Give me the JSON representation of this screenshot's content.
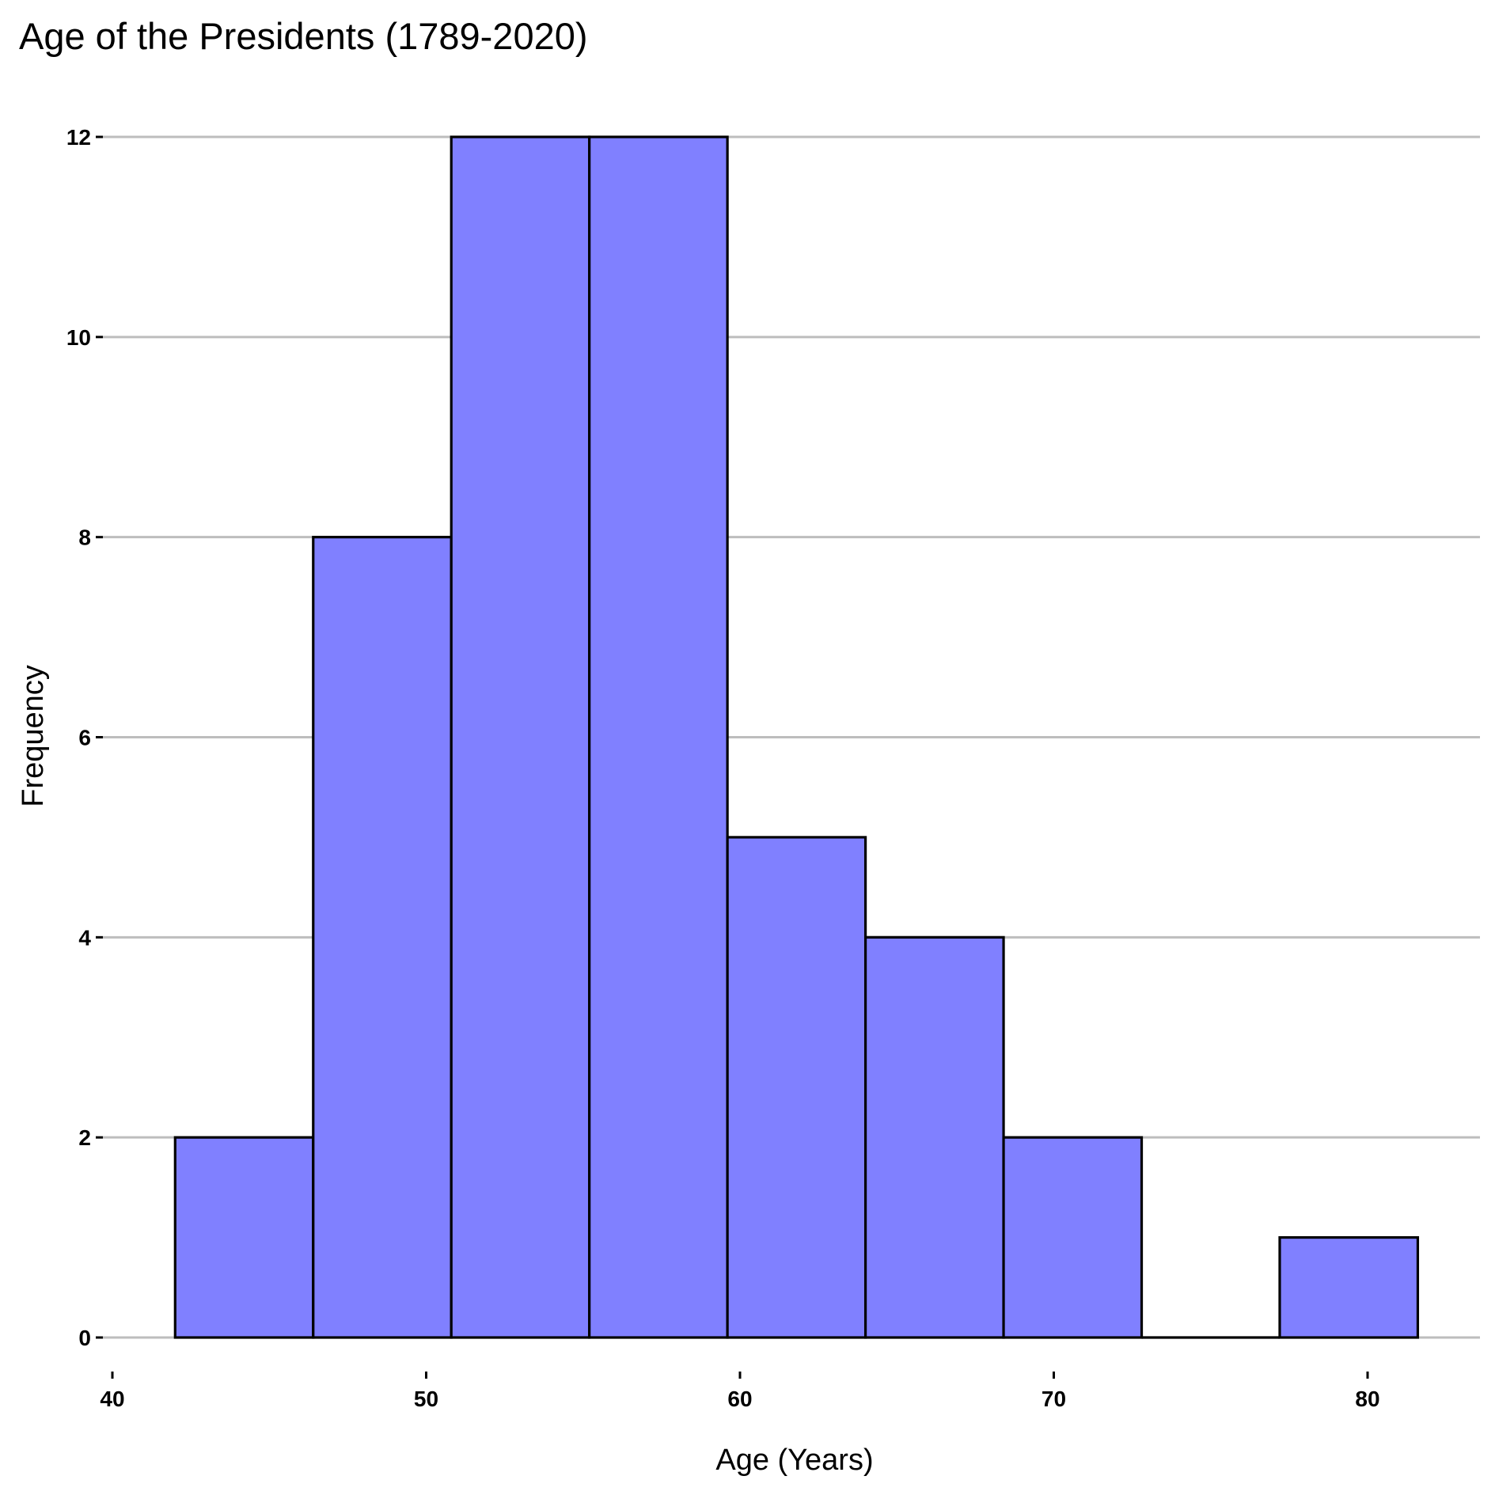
{
  "chart_data": {
    "type": "bar",
    "subtype": "histogram",
    "title": "Age of the Presidents (1789-2020)",
    "xlabel": "Age (Years)",
    "ylabel": "Frequency",
    "bins": [
      {
        "start": 42.0,
        "end": 46.4,
        "count": 2
      },
      {
        "start": 46.4,
        "end": 50.8,
        "count": 8
      },
      {
        "start": 50.8,
        "end": 55.2,
        "count": 12
      },
      {
        "start": 55.2,
        "end": 59.6,
        "count": 12
      },
      {
        "start": 59.6,
        "end": 64.0,
        "count": 5
      },
      {
        "start": 64.0,
        "end": 68.4,
        "count": 4
      },
      {
        "start": 68.4,
        "end": 72.8,
        "count": 2
      },
      {
        "start": 72.8,
        "end": 77.2,
        "count": 0
      },
      {
        "start": 77.2,
        "end": 81.6,
        "count": 1
      }
    ],
    "xlim": [
      40,
      83.5
    ],
    "ylim": [
      0,
      12
    ],
    "x_ticks": [
      40,
      50,
      60,
      70,
      80
    ],
    "y_ticks": [
      0,
      2,
      4,
      6,
      8,
      10,
      12
    ],
    "grid": "horizontal",
    "bar_fill": "#8080ff",
    "bar_edge": "#000000",
    "grid_color": "#bdbdbd"
  }
}
